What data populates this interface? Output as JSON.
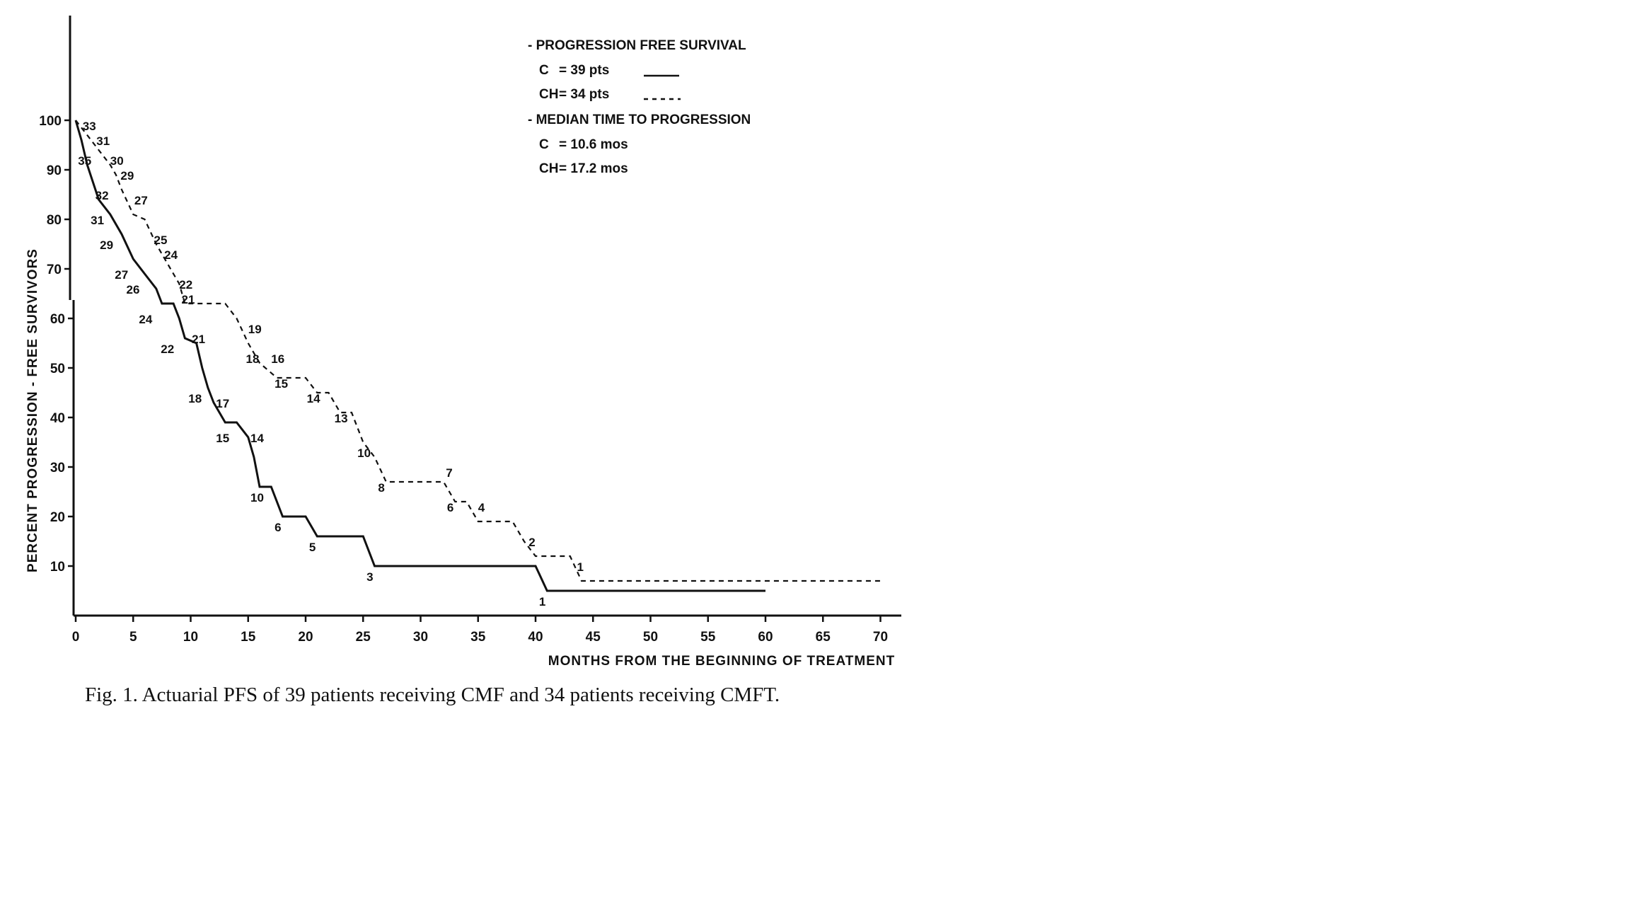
{
  "chart_data": {
    "type": "line",
    "xlabel": "MONTHS FROM THE BEGINNING OF TREATMENT",
    "ylabel": "PERCENT PROGRESSION - FREE SURVIVORS",
    "xlim": [
      0,
      72
    ],
    "ylim": [
      0,
      100
    ],
    "x_ticks": [
      0,
      5,
      10,
      15,
      20,
      25,
      30,
      35,
      40,
      45,
      50,
      55,
      60,
      65,
      70
    ],
    "x_tick_labels": [
      "0",
      "5",
      "10",
      "15",
      "20",
      "25",
      "30",
      "35",
      "40",
      "45",
      "50",
      "55",
      "60",
      "65",
      "70"
    ],
    "y_ticks": [
      10,
      20,
      30,
      40,
      50,
      60,
      70,
      80,
      90,
      100
    ],
    "y_tick_labels": [
      "10",
      "20",
      "30",
      "40",
      "50",
      "60",
      "70",
      "80",
      "90",
      "100"
    ],
    "series": [
      {
        "name": "C",
        "style": "solid",
        "points": [
          [
            0,
            100
          ],
          [
            0.5,
            96
          ],
          [
            1,
            91
          ],
          [
            2,
            84
          ],
          [
            3,
            81
          ],
          [
            4,
            77
          ],
          [
            5,
            72
          ],
          [
            6,
            69
          ],
          [
            7,
            66
          ],
          [
            7.5,
            63
          ],
          [
            8.5,
            63
          ],
          [
            9,
            60
          ],
          [
            9.5,
            56
          ],
          [
            10.5,
            55
          ],
          [
            11,
            50
          ],
          [
            11.5,
            46
          ],
          [
            12,
            43
          ],
          [
            13,
            39
          ],
          [
            14,
            39
          ],
          [
            15,
            36
          ],
          [
            15.5,
            32
          ],
          [
            16,
            26
          ],
          [
            17,
            26
          ],
          [
            18,
            20
          ],
          [
            20,
            20
          ],
          [
            21,
            16
          ],
          [
            25,
            16
          ],
          [
            26,
            10
          ],
          [
            40,
            10
          ],
          [
            41,
            5
          ],
          [
            60,
            5
          ]
        ]
      },
      {
        "name": "CH",
        "style": "dashed",
        "points": [
          [
            0,
            100
          ],
          [
            1,
            97
          ],
          [
            2,
            94
          ],
          [
            3,
            91
          ],
          [
            3.5,
            89
          ],
          [
            4,
            86
          ],
          [
            5,
            81
          ],
          [
            6,
            80
          ],
          [
            7,
            75
          ],
          [
            7.5,
            73
          ],
          [
            8,
            71
          ],
          [
            9,
            67
          ],
          [
            9.5,
            63
          ],
          [
            10,
            63
          ],
          [
            13,
            63
          ],
          [
            14,
            60
          ],
          [
            15,
            55
          ],
          [
            16,
            51
          ],
          [
            17.5,
            48
          ],
          [
            20,
            48
          ],
          [
            21,
            45
          ],
          [
            22,
            45
          ],
          [
            23,
            41
          ],
          [
            24,
            41
          ],
          [
            25,
            35
          ],
          [
            26,
            32
          ],
          [
            27,
            27
          ],
          [
            32,
            27
          ],
          [
            33,
            23
          ],
          [
            34,
            23
          ],
          [
            35,
            19
          ],
          [
            38,
            19
          ],
          [
            39,
            15
          ],
          [
            40,
            12
          ],
          [
            43,
            12
          ],
          [
            44,
            7
          ],
          [
            50,
            7
          ],
          [
            70,
            7
          ]
        ]
      }
    ],
    "risk_labels": {
      "C": [
        {
          "x": 0.2,
          "y": 91,
          "text": "35"
        },
        {
          "x": 1.7,
          "y": 84,
          "text": "32"
        },
        {
          "x": 1.3,
          "y": 79,
          "text": "31"
        },
        {
          "x": 2.1,
          "y": 74,
          "text": "29"
        },
        {
          "x": 3.4,
          "y": 68,
          "text": "27"
        },
        {
          "x": 4.4,
          "y": 65,
          "text": "26"
        },
        {
          "x": 5.5,
          "y": 59,
          "text": "24"
        },
        {
          "x": 7.4,
          "y": 53,
          "text": "22"
        },
        {
          "x": 10.1,
          "y": 55,
          "text": "21"
        },
        {
          "x": 9.8,
          "y": 43,
          "text": "18"
        },
        {
          "x": 12.2,
          "y": 42,
          "text": "17"
        },
        {
          "x": 12.2,
          "y": 35,
          "text": "15"
        },
        {
          "x": 15.2,
          "y": 35,
          "text": "14"
        },
        {
          "x": 15.2,
          "y": 23,
          "text": "10"
        },
        {
          "x": 17.3,
          "y": 17,
          "text": "6"
        },
        {
          "x": 20.3,
          "y": 13,
          "text": "5"
        },
        {
          "x": 25.3,
          "y": 7,
          "text": "3"
        },
        {
          "x": 40.3,
          "y": 2,
          "text": "1"
        }
      ],
      "CH": [
        {
          "x": 0.6,
          "y": 98,
          "text": "33"
        },
        {
          "x": 1.8,
          "y": 95,
          "text": "31"
        },
        {
          "x": 3.0,
          "y": 91,
          "text": "30"
        },
        {
          "x": 3.9,
          "y": 88,
          "text": "29"
        },
        {
          "x": 5.1,
          "y": 83,
          "text": "27"
        },
        {
          "x": 6.8,
          "y": 75,
          "text": "25"
        },
        {
          "x": 7.7,
          "y": 72,
          "text": "24"
        },
        {
          "x": 9.0,
          "y": 66,
          "text": "22"
        },
        {
          "x": 9.2,
          "y": 63,
          "text": "21"
        },
        {
          "x": 15.0,
          "y": 57,
          "text": "19"
        },
        {
          "x": 14.8,
          "y": 51,
          "text": "18"
        },
        {
          "x": 17.0,
          "y": 51,
          "text": "16"
        },
        {
          "x": 17.3,
          "y": 46,
          "text": "15"
        },
        {
          "x": 20.1,
          "y": 43,
          "text": "14"
        },
        {
          "x": 22.5,
          "y": 39,
          "text": "13"
        },
        {
          "x": 24.5,
          "y": 32,
          "text": "10"
        },
        {
          "x": 26.3,
          "y": 25,
          "text": "8"
        },
        {
          "x": 32.2,
          "y": 28,
          "text": "7"
        },
        {
          "x": 32.3,
          "y": 21,
          "text": "6"
        },
        {
          "x": 35.0,
          "y": 21,
          "text": "4"
        },
        {
          "x": 39.4,
          "y": 14,
          "text": "2"
        },
        {
          "x": 43.6,
          "y": 9,
          "text": "1"
        }
      ]
    }
  },
  "legend": {
    "heading1": "- PROGRESSION FREE SURVIVAL",
    "c_label": "C",
    "c_value": "= 39 pts",
    "ch_label": "CH",
    "ch_value": "= 34 pts",
    "heading2": "- MEDIAN TIME TO PROGRESSION",
    "c_median_label": "C",
    "c_median_value": "= 10.6 mos",
    "ch_median_label": "CH",
    "ch_median_value": "= 17.2 mos"
  },
  "caption": "Fig. 1. Actuarial PFS of 39 patients receiving CMF and 34 patients receiving CMFT."
}
